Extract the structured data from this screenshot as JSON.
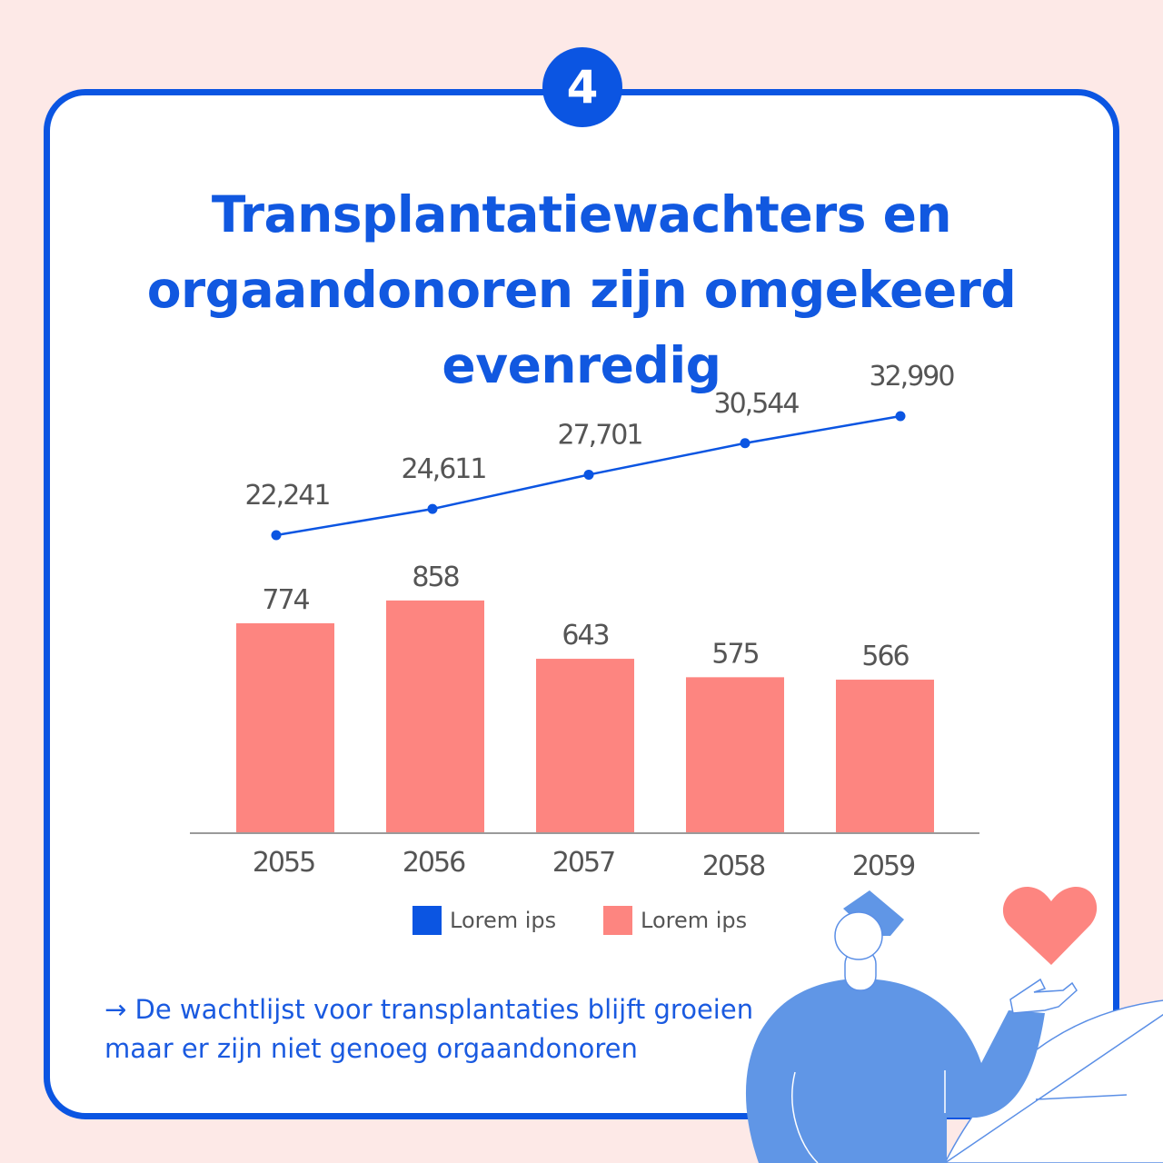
{
  "badge": "4",
  "title": {
    "line1": "Transplantatiewachters en",
    "line2": "orgaandonoren zijn omgekeerd evenredig"
  },
  "chart_data": {
    "type": "bar+line",
    "categories": [
      "2055",
      "2056",
      "2057",
      "2058",
      "2059"
    ],
    "series": [
      {
        "name": "Lorem ips",
        "type": "line",
        "color": "#0b55e2",
        "values": [
          22241,
          24611,
          27701,
          30544,
          32990
        ],
        "labels": [
          "22,241",
          "24,611",
          "27,701",
          "30,544",
          "32,990"
        ]
      },
      {
        "name": "Lorem ips",
        "type": "bar",
        "color": "#fd8580",
        "values": [
          774,
          858,
          643,
          575,
          566
        ],
        "labels": [
          "774",
          "858",
          "643",
          "575",
          "566"
        ]
      }
    ],
    "legend": "bottom",
    "grid": false
  },
  "legend": [
    {
      "label": "Lorem ips",
      "color": "#0b55e2"
    },
    {
      "label": "Lorem ips",
      "color": "#fd8580"
    }
  ],
  "note": {
    "line1": "→ De wachtlijst voor transplantaties blijft groeien",
    "line2": "maar er zijn niet genoeg orgaandonoren"
  }
}
